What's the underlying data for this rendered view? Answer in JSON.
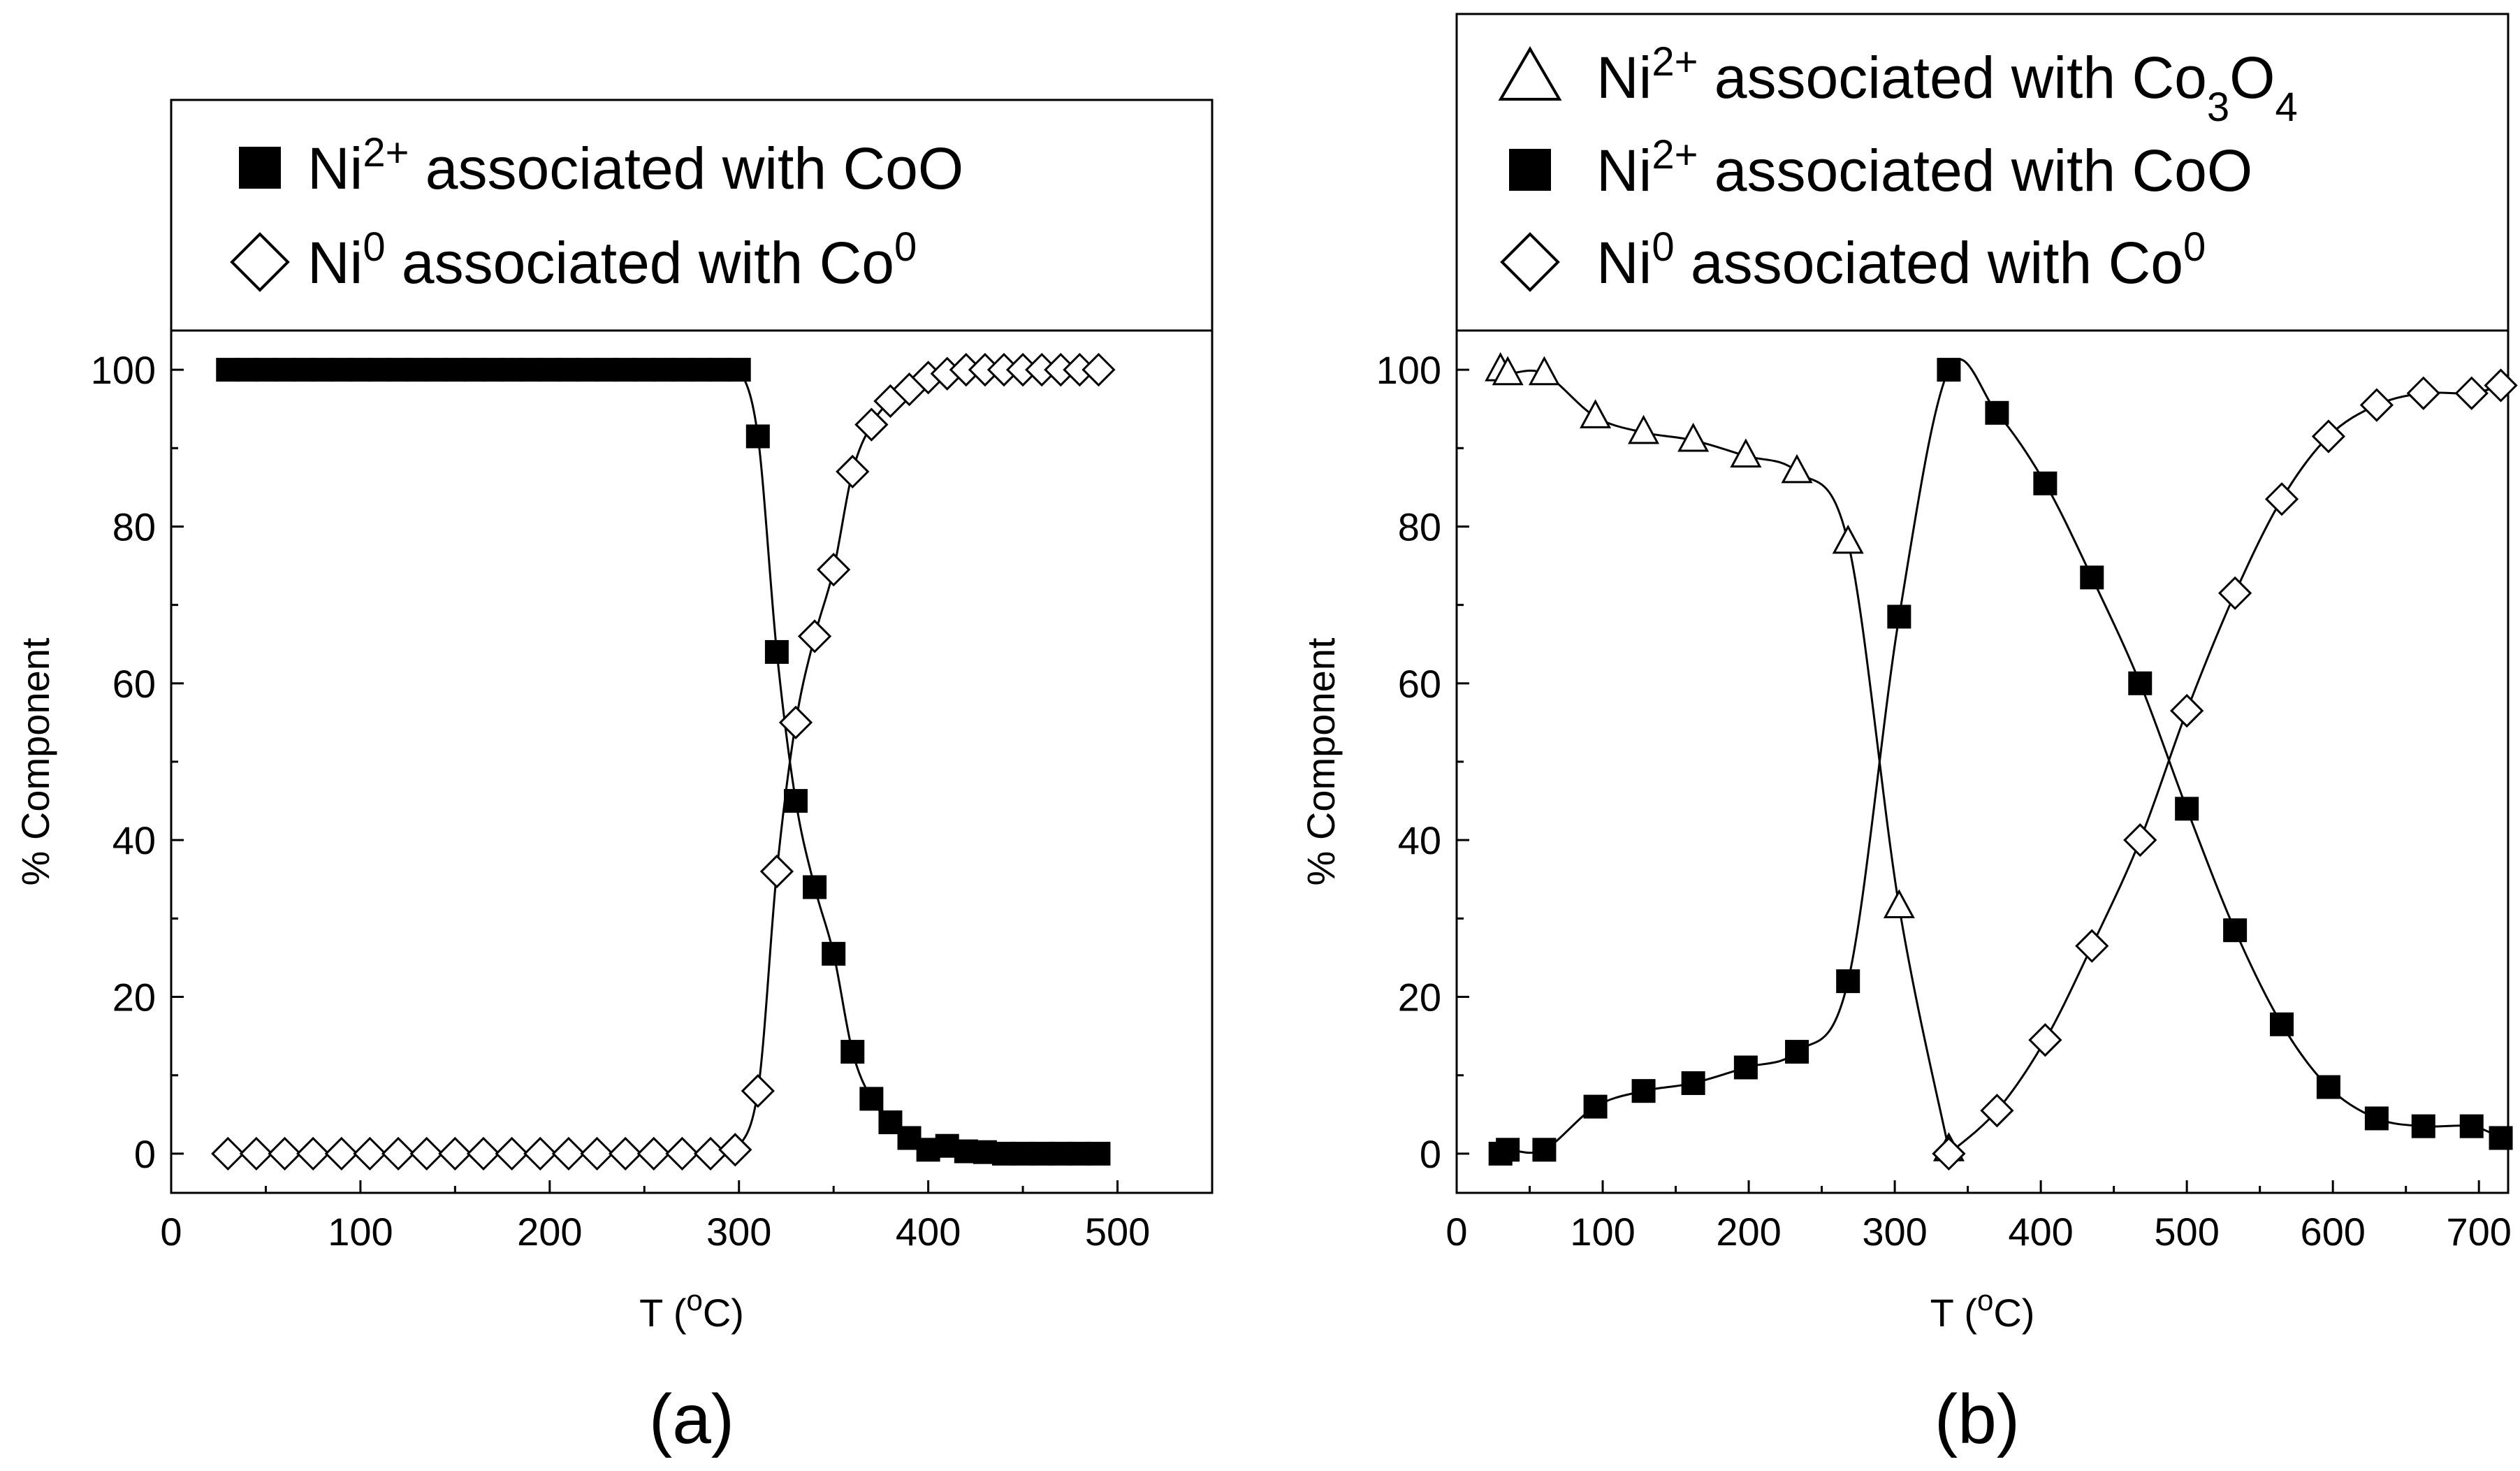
{
  "chart_data": [
    {
      "type": "line",
      "panel_label": "(a)",
      "xlabel": "T (oC)",
      "ylabel": "% Component",
      "xlim": [
        0,
        550
      ],
      "ylim": [
        -5,
        105
      ],
      "x_ticks": [
        0,
        100,
        200,
        300,
        400,
        500
      ],
      "y_ticks": [
        0,
        20,
        40,
        60,
        80,
        100
      ],
      "legend": [
        {
          "base": "Ni",
          "sup": "2+",
          "text": " associated with CoO",
          "marker": "square"
        },
        {
          "base": "Ni",
          "sup": "0",
          "text": " associated with Co",
          "text_sup": "0",
          "marker": "diamond"
        }
      ],
      "series": [
        {
          "name": "Ni2+ associated with CoO",
          "marker": "square",
          "x": [
            30,
            40,
            50,
            60,
            70,
            80,
            90,
            100,
            110,
            120,
            130,
            140,
            150,
            160,
            170,
            180,
            190,
            200,
            210,
            220,
            230,
            240,
            250,
            260,
            270,
            280,
            290,
            300,
            310,
            320,
            330,
            340,
            350,
            360,
            370,
            380,
            390,
            400,
            410,
            420,
            430,
            440,
            450,
            460,
            470,
            480,
            490
          ],
          "y": [
            100,
            100,
            100,
            100,
            100,
            100,
            100,
            100,
            100,
            100,
            100,
            100,
            100,
            100,
            100,
            100,
            100,
            100,
            100,
            100,
            100,
            100,
            100,
            100,
            100,
            100,
            100,
            100,
            91.5,
            64,
            45,
            34,
            25.5,
            13,
            7,
            4,
            2,
            0.5,
            1,
            0.3,
            0.2,
            0,
            0,
            0,
            0,
            0,
            0
          ]
        },
        {
          "name": "Ni0 associated with Co0",
          "marker": "diamond",
          "x": [
            30,
            45,
            60,
            75,
            90,
            105,
            120,
            135,
            150,
            165,
            180,
            195,
            210,
            225,
            240,
            255,
            270,
            285,
            298,
            310,
            320,
            330,
            340,
            350,
            360,
            370,
            380,
            390,
            400,
            410,
            420,
            430,
            440,
            450,
            460,
            470,
            480,
            490
          ],
          "y": [
            0,
            0,
            0,
            0,
            0,
            0,
            0,
            0,
            0,
            0,
            0,
            0,
            0,
            0,
            0,
            0,
            0,
            0,
            0.5,
            8,
            36,
            55,
            66,
            74.5,
            87,
            93,
            96,
            97.5,
            99,
            99.5,
            100,
            100,
            100,
            100,
            100,
            100,
            100,
            100
          ]
        }
      ]
    },
    {
      "type": "line",
      "panel_label": "(b)",
      "xlabel": "T (oC)",
      "ylabel": "% Component",
      "xlim": [
        0,
        720
      ],
      "ylim": [
        -5,
        105
      ],
      "x_ticks": [
        0,
        100,
        200,
        300,
        400,
        500,
        600,
        700
      ],
      "y_ticks": [
        0,
        20,
        40,
        60,
        80,
        100
      ],
      "legend": [
        {
          "base": "Ni",
          "sup": "2+",
          "text": " associated with Co",
          "formula": true,
          "marker": "triangle"
        },
        {
          "base": "Ni",
          "sup": "2+",
          "text": " associated with CoO",
          "marker": "square"
        },
        {
          "base": "Ni",
          "sup": "0",
          "text": " associated with Co",
          "text_sup": "0",
          "marker": "diamond"
        }
      ],
      "series": [
        {
          "name": "Ni2+ associated with Co3O4",
          "marker": "triangle",
          "x": [
            30,
            35,
            60,
            95,
            128,
            162,
            198,
            233,
            268,
            303,
            337
          ],
          "y": [
            100,
            99.5,
            99.5,
            94,
            92,
            91,
            89,
            87,
            78,
            31.5,
            0.5
          ]
        },
        {
          "name": "Ni2+ associated with CoO",
          "marker": "square",
          "x": [
            30,
            35,
            60,
            95,
            128,
            162,
            198,
            233,
            268,
            303,
            337,
            370,
            403,
            435,
            468,
            500,
            533,
            565,
            597,
            630,
            662,
            695,
            715
          ],
          "y": [
            0,
            0.5,
            0.5,
            6,
            8,
            9,
            11,
            13,
            22,
            68.5,
            100,
            94.5,
            85.5,
            73.5,
            60,
            44,
            28.5,
            16.5,
            8.5,
            4.5,
            3.5,
            3.5,
            2
          ]
        },
        {
          "name": "Ni0 associated with Co0",
          "marker": "diamond",
          "x": [
            337,
            370,
            403,
            435,
            468,
            500,
            533,
            565,
            597,
            630,
            662,
            695,
            715
          ],
          "y": [
            0,
            5.5,
            14.5,
            26.5,
            40,
            56.5,
            71.5,
            83.5,
            91.5,
            95.5,
            97,
            97,
            98
          ]
        }
      ]
    }
  ],
  "legend_formula": {
    "co": "Co",
    "sub1": "3",
    "o": "O",
    "sub2": "4"
  }
}
